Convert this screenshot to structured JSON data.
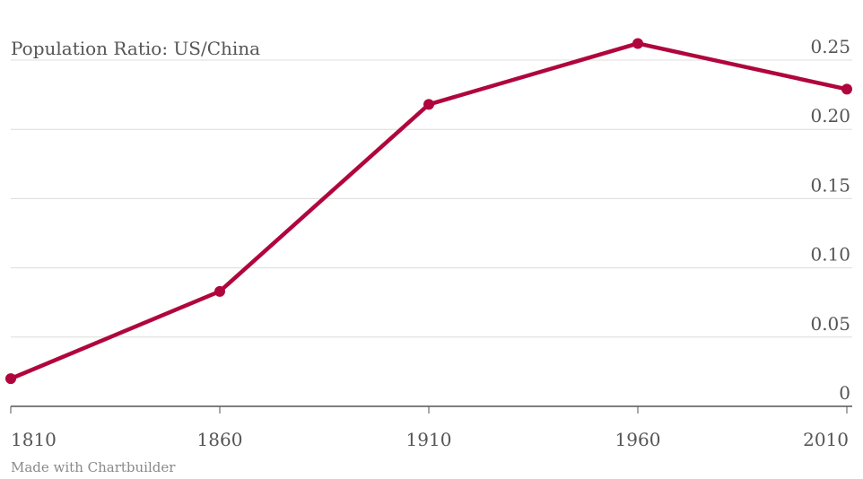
{
  "chart_data": {
    "type": "line",
    "title": "Population Ratio: US/China",
    "xlabel": "",
    "ylabel": "",
    "x": [
      1810,
      1860,
      1910,
      1960,
      2010
    ],
    "x_tick_labels": [
      "1810",
      "1860",
      "1910",
      "1960",
      "2010"
    ],
    "series": [
      {
        "values": [
          0.02,
          0.083,
          0.218,
          0.262,
          0.229
        ],
        "color": "#b0063d"
      }
    ],
    "ylim": [
      0,
      0.25
    ],
    "y_ticks": [
      0,
      0.05,
      0.1,
      0.15,
      0.2,
      0.25
    ],
    "y_tick_labels": [
      "0",
      "0.05",
      "0.10",
      "0.15",
      "0.20",
      "0.25"
    ],
    "y_axis_side": "right",
    "grid": true,
    "markers": true
  },
  "footer": {
    "credit": "Made with Chartbuilder"
  }
}
